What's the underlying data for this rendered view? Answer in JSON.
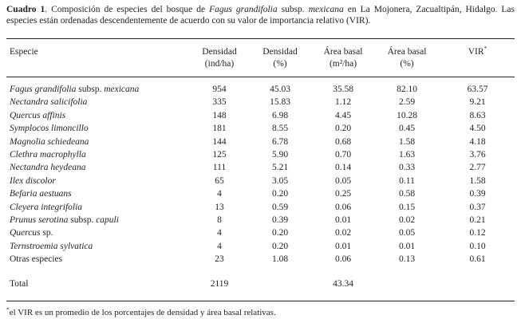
{
  "caption": {
    "segments": [
      {
        "text": "Cuadro 1",
        "bold": true
      },
      {
        "text": ". Composición de especies del bosque de "
      },
      {
        "text": "Fagus grandifolia",
        "italic": true
      },
      {
        "text": " subsp. "
      },
      {
        "text": "mexicana",
        "italic": true
      },
      {
        "text": " en La Mojonera, Zacualtipán, Hidalgo. Las especies están ordenadas descendentemente de acuerdo con su valor de importancia relativo (VIR)."
      }
    ]
  },
  "table": {
    "columns": [
      {
        "line1": "Especie",
        "line2": "",
        "align": "left"
      },
      {
        "line1": "Densidad",
        "line2": "(ind/ha)",
        "align": "center"
      },
      {
        "line1": "Densidad",
        "line2": "(%)",
        "align": "center"
      },
      {
        "line1": "Área basal",
        "line2": "(m²/ha)",
        "align": "center"
      },
      {
        "line1": "Área basal",
        "line2": "(%)",
        "align": "center"
      },
      {
        "line1": "VIR",
        "sup": "*",
        "line2": "",
        "align": "center"
      }
    ],
    "rows": [
      {
        "species": [
          {
            "text": "Fagus grandifolia",
            "italic": true
          },
          {
            "text": " subsp. "
          },
          {
            "text": "mexicana",
            "italic": true
          }
        ],
        "values": [
          "954",
          "45.03",
          "35.58",
          "82.10",
          "63.57"
        ]
      },
      {
        "species": [
          {
            "text": "Nectandra salicifolia",
            "italic": true
          }
        ],
        "values": [
          "335",
          "15.83",
          "1.12",
          "2.59",
          "9.21"
        ]
      },
      {
        "species": [
          {
            "text": "Quercus affinis",
            "italic": true
          }
        ],
        "values": [
          "148",
          "6.98",
          "4.45",
          "10.28",
          "8.63"
        ]
      },
      {
        "species": [
          {
            "text": "Symplocos limoncillo",
            "italic": true
          }
        ],
        "values": [
          "181",
          "8.55",
          "0.20",
          "0.45",
          "4.50"
        ]
      },
      {
        "species": [
          {
            "text": "Magnolia schiedeana",
            "italic": true
          }
        ],
        "values": [
          "144",
          "6.78",
          "0.68",
          "1.58",
          "4.18"
        ]
      },
      {
        "species": [
          {
            "text": "Clethra macrophylla",
            "italic": true
          }
        ],
        "values": [
          "125",
          "5.90",
          "0.70",
          "1.63",
          "3.76"
        ]
      },
      {
        "species": [
          {
            "text": "Nectandra heydeana",
            "italic": true
          }
        ],
        "values": [
          "111",
          "5.21",
          "0.14",
          "0.33",
          "2.77"
        ]
      },
      {
        "species": [
          {
            "text": "Ilex discolor",
            "italic": true
          }
        ],
        "values": [
          "65",
          "3.05",
          "0.05",
          "0.11",
          "1.58"
        ]
      },
      {
        "species": [
          {
            "text": "Befaria aestuans",
            "italic": true
          }
        ],
        "values": [
          "4",
          "0.20",
          "0.25",
          "0.58",
          "0.39"
        ]
      },
      {
        "species": [
          {
            "text": "Cleyera integrifolia",
            "italic": true
          }
        ],
        "values": [
          "13",
          "0.59",
          "0.06",
          "0.15",
          "0.37"
        ]
      },
      {
        "species": [
          {
            "text": "Prunus serotina",
            "italic": true
          },
          {
            "text": " subsp. "
          },
          {
            "text": "capuli",
            "italic": true
          }
        ],
        "values": [
          "8",
          "0.39",
          "0.01",
          "0.02",
          "0.21"
        ]
      },
      {
        "species": [
          {
            "text": "Quercus",
            "italic": true
          },
          {
            "text": " sp."
          }
        ],
        "values": [
          "4",
          "0.20",
          "0.02",
          "0.05",
          "0.12"
        ]
      },
      {
        "species": [
          {
            "text": "Ternstroemia sylvatica",
            "italic": true
          }
        ],
        "values": [
          "4",
          "0.20",
          "0.01",
          "0.01",
          "0.10"
        ]
      },
      {
        "species": [
          {
            "text": "Otras especies"
          }
        ],
        "values": [
          "23",
          "1.08",
          "0.06",
          "0.13",
          "0.61"
        ]
      }
    ],
    "total": {
      "label": "Total",
      "values": [
        "2119",
        "",
        "43.34",
        "",
        ""
      ]
    }
  },
  "footnote": {
    "marker": "*",
    "text": "el VIR es un promedio de los porcentajes de densidad y área basal relativas."
  }
}
